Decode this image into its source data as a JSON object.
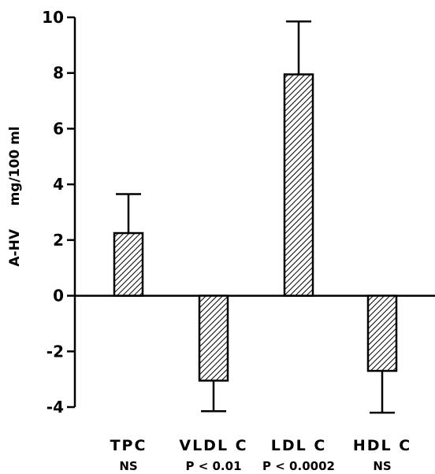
{
  "chart_data": {
    "type": "bar",
    "title": "",
    "xlabel": "",
    "ylabel": "A-HV     mg/100 ml",
    "ylim": [
      -4,
      10
    ],
    "yticks": [
      -4,
      -2,
      0,
      2,
      4,
      6,
      8,
      10
    ],
    "ytick_labels": [
      "-4",
      "-2",
      "0",
      "2",
      "4",
      "6",
      "8",
      "10"
    ],
    "categories": [
      "TPC",
      "VLDL C",
      "LDL C",
      "HDL C"
    ],
    "significance": [
      "NS",
      "P < 0.01",
      "P < 0.0002",
      "NS"
    ],
    "values": [
      2.25,
      -3.05,
      7.95,
      -2.7
    ],
    "errors": [
      1.4,
      1.1,
      1.9,
      1.5
    ],
    "bar_fill": "diagonal-hatch",
    "grid": false,
    "legend": "none"
  }
}
